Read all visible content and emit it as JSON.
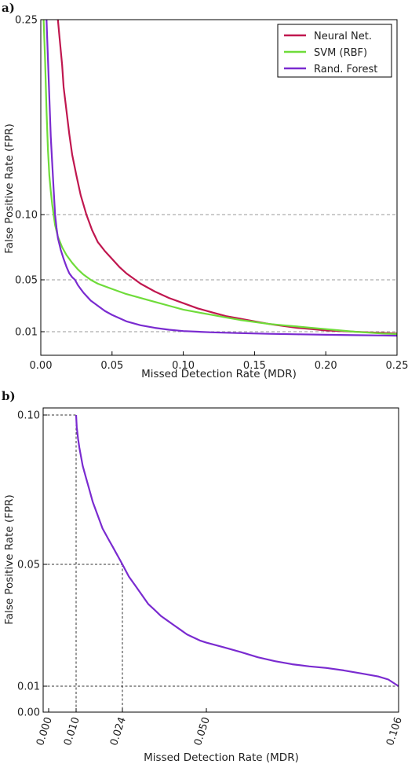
{
  "chart_data": [
    {
      "type": "line",
      "panel_label": "a)",
      "xlabel": "Missed Detection Rate (MDR)",
      "ylabel": "False Positive Rate (FPR)",
      "xlim": [
        0,
        0.25
      ],
      "ylim": [
        -0.01,
        0.25
      ],
      "xticks": [
        "0.00",
        "0.05",
        "0.10",
        "0.15",
        "0.20",
        "0.25"
      ],
      "xtick_values": [
        0,
        0.05,
        0.1,
        0.15,
        0.2,
        0.25
      ],
      "yticks": [
        "0.01",
        "0.05",
        "0.10",
        "0.25"
      ],
      "ytick_values": [
        0.01,
        0.05,
        0.1,
        0.25
      ],
      "grid_y": [
        0.01,
        0.05,
        0.1
      ],
      "legend": "top-right",
      "series": [
        {
          "name": "Neural Net.",
          "color": "#c0174f",
          "x": [
            0.012,
            0.013,
            0.015,
            0.016,
            0.018,
            0.02,
            0.022,
            0.025,
            0.028,
            0.032,
            0.036,
            0.04,
            0.045,
            0.05,
            0.055,
            0.06,
            0.065,
            0.07,
            0.08,
            0.09,
            0.1,
            0.11,
            0.12,
            0.13,
            0.14,
            0.15,
            0.16,
            0.17,
            0.18,
            0.19,
            0.2,
            0.21,
            0.22,
            0.23,
            0.24,
            0.25
          ],
          "y": [
            0.25,
            0.238,
            0.215,
            0.198,
            0.18,
            0.162,
            0.146,
            0.13,
            0.115,
            0.1,
            0.088,
            0.079,
            0.072,
            0.066,
            0.06,
            0.055,
            0.051,
            0.047,
            0.041,
            0.036,
            0.032,
            0.028,
            0.025,
            0.022,
            0.02,
            0.018,
            0.016,
            0.0145,
            0.013,
            0.012,
            0.011,
            0.0105,
            0.01,
            0.0095,
            0.009,
            0.0085
          ]
        },
        {
          "name": "SVM (RBF)",
          "color": "#6fdc3a",
          "x": [
            0.002,
            0.003,
            0.004,
            0.005,
            0.006,
            0.007,
            0.008,
            0.009,
            0.01,
            0.012,
            0.015,
            0.018,
            0.022,
            0.026,
            0.03,
            0.035,
            0.04,
            0.05,
            0.06,
            0.07,
            0.08,
            0.09,
            0.1,
            0.11,
            0.12,
            0.13,
            0.14,
            0.15,
            0.16,
            0.17,
            0.18,
            0.19,
            0.2,
            0.21,
            0.22,
            0.23,
            0.24,
            0.25
          ],
          "y": [
            0.25,
            0.22,
            0.18,
            0.15,
            0.13,
            0.118,
            0.108,
            0.1,
            0.092,
            0.083,
            0.075,
            0.069,
            0.063,
            0.058,
            0.054,
            0.05,
            0.047,
            0.043,
            0.039,
            0.036,
            0.033,
            0.03,
            0.027,
            0.025,
            0.023,
            0.021,
            0.019,
            0.0175,
            0.016,
            0.015,
            0.014,
            0.013,
            0.012,
            0.011,
            0.01,
            0.0092,
            0.0085,
            0.008
          ]
        },
        {
          "name": "Rand. Forest",
          "color": "#7a2bd0",
          "x": [
            0.004,
            0.005,
            0.006,
            0.007,
            0.008,
            0.009,
            0.01,
            0.011,
            0.012,
            0.014,
            0.016,
            0.018,
            0.02,
            0.022,
            0.024,
            0.026,
            0.028,
            0.03,
            0.035,
            0.04,
            0.045,
            0.05,
            0.06,
            0.07,
            0.08,
            0.09,
            0.1,
            0.12,
            0.14,
            0.16,
            0.18,
            0.2,
            0.22,
            0.24,
            0.25
          ],
          "y": [
            0.25,
            0.22,
            0.19,
            0.16,
            0.14,
            0.12,
            0.1,
            0.09,
            0.082,
            0.073,
            0.066,
            0.06,
            0.055,
            0.052,
            0.05,
            0.046,
            0.043,
            0.04,
            0.034,
            0.03,
            0.026,
            0.023,
            0.018,
            0.015,
            0.013,
            0.0115,
            0.0105,
            0.0095,
            0.0088,
            0.0082,
            0.0078,
            0.0074,
            0.0071,
            0.0068,
            0.0066
          ]
        }
      ]
    },
    {
      "type": "line",
      "panel_label": "b)",
      "xlabel": "Missed Detection Rate (MDR)",
      "ylabel": "False Positive Rate (FPR)",
      "xlim": [
        0,
        0.106
      ],
      "ylim": [
        0,
        0.1
      ],
      "xticks": [
        "0.000",
        "0.010",
        "0.024",
        "0.050",
        "0.106"
      ],
      "xtick_values": [
        0,
        0.01,
        0.024,
        0.05,
        0.106
      ],
      "yticks": [
        "0.00",
        "0.01",
        "0.05",
        "0.10"
      ],
      "ytick_values": [
        0,
        0.01,
        0.05,
        0.1
      ],
      "reference_lines": [
        {
          "x": 0.01,
          "y": 0.1
        },
        {
          "x": 0.024,
          "y": 0.05
        },
        {
          "x": 0.106,
          "y": 0.01
        }
      ],
      "series": [
        {
          "name": "",
          "color": "#7a2bd0",
          "x": [
            0.01,
            0.0102,
            0.0106,
            0.011,
            0.0115,
            0.012,
            0.013,
            0.014,
            0.015,
            0.016,
            0.017,
            0.018,
            0.019,
            0.02,
            0.021,
            0.022,
            0.023,
            0.024,
            0.025,
            0.026,
            0.028,
            0.03,
            0.032,
            0.034,
            0.036,
            0.038,
            0.04,
            0.042,
            0.044,
            0.046,
            0.048,
            0.05,
            0.055,
            0.06,
            0.065,
            0.07,
            0.075,
            0.08,
            0.085,
            0.09,
            0.095,
            0.1,
            0.103,
            0.106
          ],
          "y": [
            0.1,
            0.096,
            0.092,
            0.089,
            0.086,
            0.083,
            0.079,
            0.075,
            0.071,
            0.068,
            0.065,
            0.062,
            0.06,
            0.058,
            0.056,
            0.054,
            0.052,
            0.05,
            0.048,
            0.046,
            0.043,
            0.04,
            0.037,
            0.035,
            0.033,
            0.0315,
            0.03,
            0.0285,
            0.027,
            0.026,
            0.025,
            0.0243,
            0.0228,
            0.0212,
            0.0195,
            0.0182,
            0.0172,
            0.0165,
            0.016,
            0.0152,
            0.0142,
            0.0132,
            0.0122,
            0.01
          ]
        }
      ]
    }
  ]
}
